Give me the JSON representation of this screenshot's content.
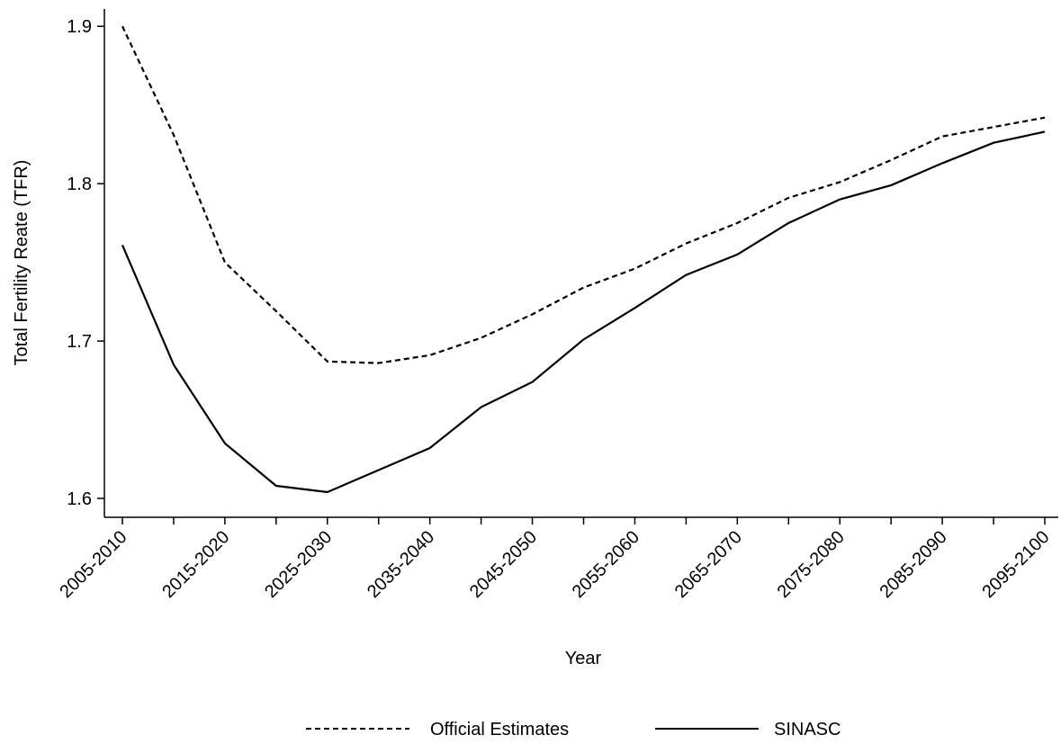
{
  "chart_data": {
    "type": "line",
    "x_label": "Year",
    "y_label": "Total Fertility Reate (TFR)",
    "categories": [
      "2005-2010",
      null,
      "2015-2020",
      null,
      "2025-2030",
      null,
      "2035-2040",
      null,
      "2045-2050",
      null,
      "2055-2060",
      null,
      "2065-2070",
      null,
      "2075-2080",
      null,
      "2085-2090",
      null,
      "2095-2100"
    ],
    "series": [
      {
        "name": "Official Estimates",
        "color": "#000000",
        "dash": "dashed",
        "values": [
          1.9,
          1.831,
          1.75,
          1.719,
          1.687,
          1.686,
          1.691,
          1.702,
          1.717,
          1.734,
          1.746,
          1.762,
          1.775,
          1.791,
          1.801,
          1.815,
          1.83,
          1.836,
          1.842
        ]
      },
      {
        "name": "SINASC",
        "color": "#000000",
        "dash": "solid",
        "values": [
          1.761,
          1.685,
          1.635,
          1.608,
          1.604,
          1.618,
          1.632,
          1.658,
          1.674,
          1.701,
          1.721,
          1.742,
          1.755,
          1.775,
          1.79,
          1.799,
          1.813,
          1.826,
          1.833
        ]
      }
    ],
    "ylim": [
      1.588,
      1.911
    ],
    "yticks": [
      1.6,
      1.7,
      1.8,
      1.9
    ],
    "grid": false,
    "legend": "bottom"
  }
}
